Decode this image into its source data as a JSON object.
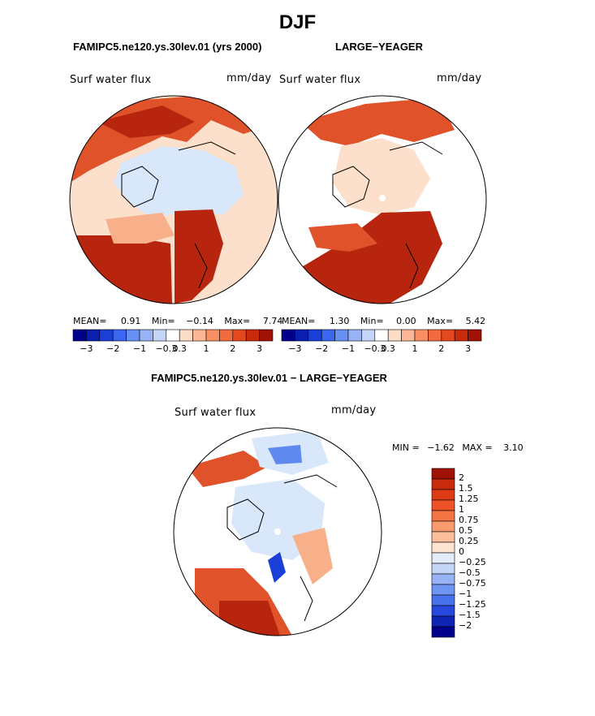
{
  "figure": {
    "title": "DJF",
    "panels": [
      {
        "title": "FAMIPC5.ne120.ys.30lev.01 (yrs 2000)",
        "variable": "Surf water flux",
        "units": "mm/day",
        "stats": {
          "mean_label": "MEAN=",
          "mean": "0.91",
          "min_label": "Min=",
          "min": "-0.14",
          "max_label": "Max=",
          "max": "7.74"
        }
      },
      {
        "title": "LARGE-YEAGER",
        "variable": "Surf water flux",
        "units": "mm/day",
        "stats": {
          "mean_label": "MEAN=",
          "mean": "1.30",
          "min_label": "Min=",
          "min": "0.00",
          "max_label": "Max=",
          "max": "5.42"
        }
      },
      {
        "title": "FAMIPC5.ne120.ys.30lev.01 - LARGE-YEAGER",
        "variable": "Surf water flux",
        "units": "mm/day",
        "stats": {
          "min_label": "MIN =",
          "min": "-1.62",
          "max_label": "MAX =",
          "max": "3.10"
        }
      }
    ]
  },
  "colorbars": {
    "horizontal": {
      "tick_labels": [
        "-3",
        "-2",
        "-1",
        "-0.3",
        "0.3",
        "1",
        "2",
        "3"
      ],
      "colors": [
        "#00008b",
        "#0a1fb0",
        "#1a3fd6",
        "#3a66f0",
        "#6690f2",
        "#97b3f5",
        "#c4d6f8",
        "#ffffff",
        "#fddcc6",
        "#fcb796",
        "#f98f63",
        "#f26a3f",
        "#e4481f",
        "#c82a0c",
        "#a01205"
      ]
    },
    "vertical": {
      "labels": [
        "2",
        "1.5",
        "1.25",
        "1",
        "0.75",
        "0.5",
        "0.25",
        "0",
        "-0.25",
        "-0.5",
        "-0.75",
        "-1",
        "-1.25",
        "-1.5",
        "-2"
      ],
      "colors": [
        "#a01205",
        "#c82a0c",
        "#dd3b16",
        "#ee5328",
        "#f57443",
        "#f99a6e",
        "#fcbf9c",
        "#fde4d2",
        "#e3edfa",
        "#c4d6f8",
        "#97b3f5",
        "#6f95f2",
        "#4872ec",
        "#2648dc",
        "#0f24b3",
        "#00008b"
      ]
    }
  },
  "map_colors": {
    "warm": "#b7250e",
    "warm_mid": "#e0522a",
    "warm_light": "#f8b08a",
    "pale": "#fde0cc",
    "ice": "#d9e7fb",
    "blue_mid": "#5f89ef",
    "blue_dark": "#1a3fd6",
    "land_line": "#000000"
  }
}
